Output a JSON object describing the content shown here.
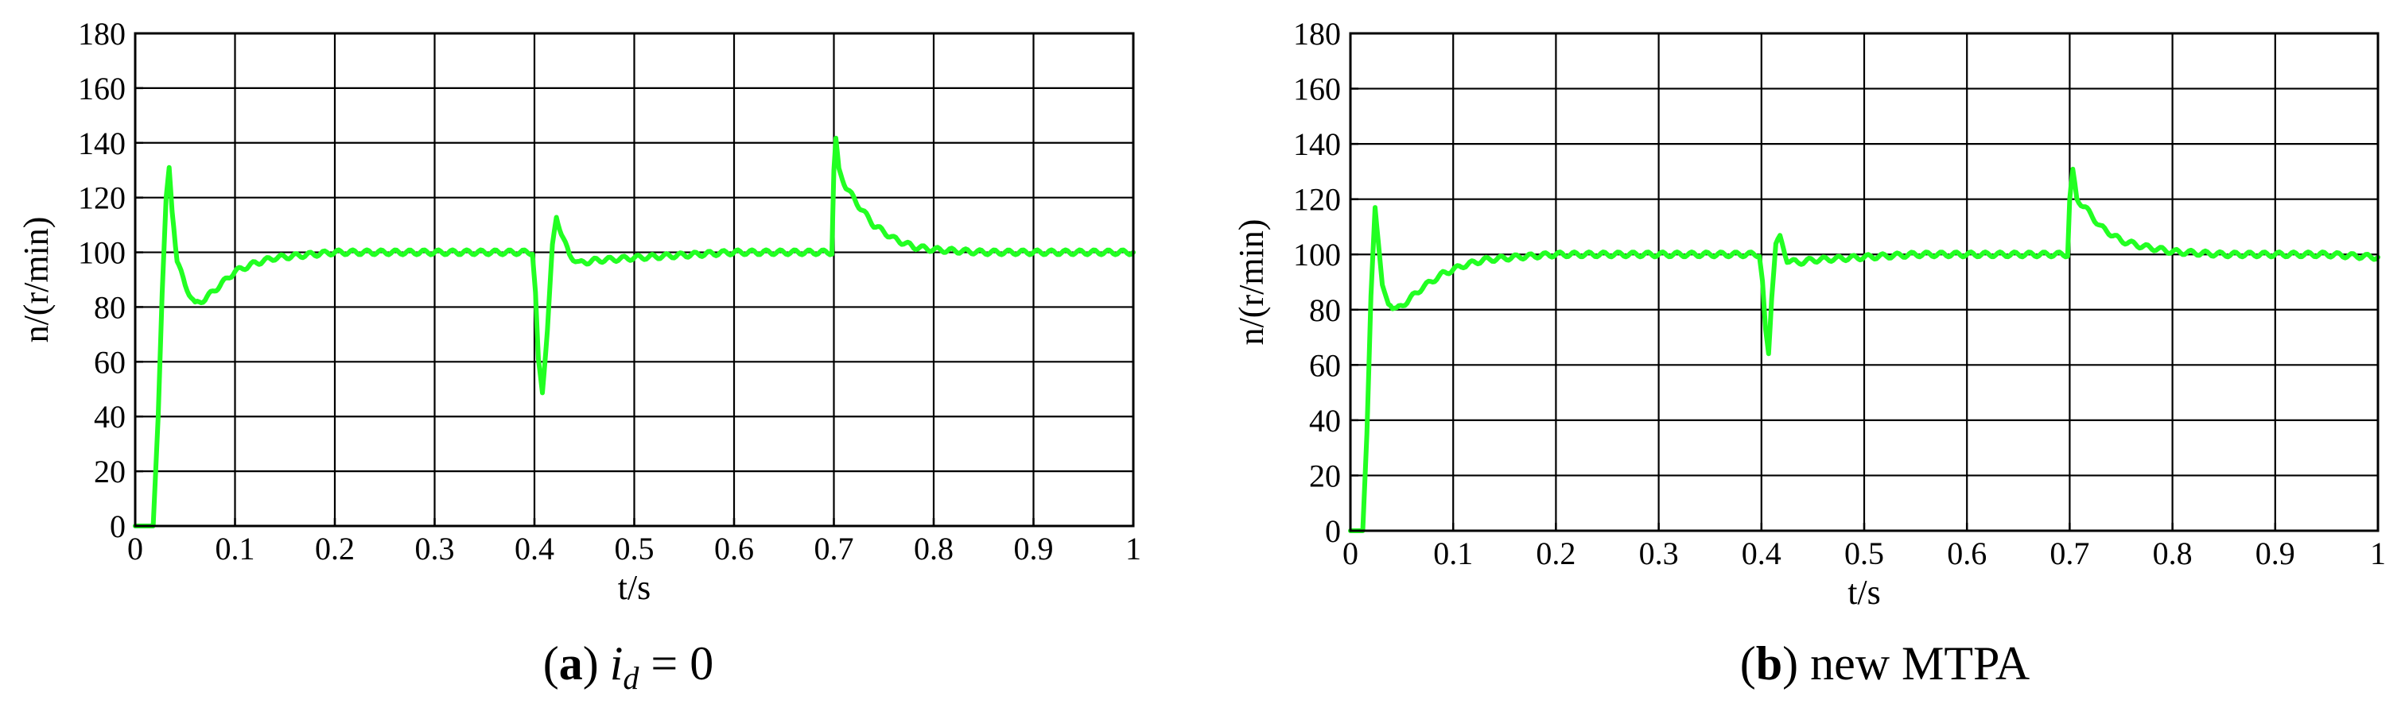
{
  "colors": {
    "line": "#22ff22",
    "grid": "#000000",
    "background": "#ffffff"
  },
  "captions": [
    {
      "letter": "a",
      "italic_main": "i",
      "italic_sub": "d",
      "rest": " = 0"
    },
    {
      "letter": "b",
      "italic_main": "",
      "italic_sub": "",
      "rest": " new MTPA"
    }
  ],
  "chart_data": [
    {
      "type": "line",
      "xlabel": "t/s",
      "ylabel": "n/(r/min)",
      "xlim": [
        0,
        1
      ],
      "ylim": [
        0,
        180
      ],
      "xticks": [
        0,
        0.1,
        0.2,
        0.3,
        0.4,
        0.5,
        0.6,
        0.7,
        0.8,
        0.9,
        1
      ],
      "xtick_labels": [
        "0",
        "0.1",
        "0.2",
        "0.3",
        "0.4",
        "0.5",
        "0.6",
        "0.7",
        "0.8",
        "0.9",
        "1"
      ],
      "yticks": [
        0,
        20,
        40,
        60,
        80,
        100,
        120,
        140,
        160,
        180
      ],
      "ytick_labels": [
        "0",
        "20",
        "40",
        "60",
        "80",
        "100",
        "120",
        "140",
        "160",
        "180"
      ],
      "grid": true,
      "series": [
        {
          "x": [
            0,
            0.018,
            0.023,
            0.027,
            0.031,
            0.034,
            0.037,
            0.042,
            0.05,
            0.06,
            0.07,
            0.085,
            0.1,
            0.12,
            0.14,
            0.17,
            0.2,
            0.25,
            0.3,
            0.35,
            0.398,
            0.401,
            0.404,
            0.408,
            0.413,
            0.418,
            0.422,
            0.427,
            0.435,
            0.445,
            0.46,
            0.5,
            0.55,
            0.6,
            0.65,
            0.698,
            0.7,
            0.702,
            0.705,
            0.712,
            0.725,
            0.74,
            0.76,
            0.78,
            0.8,
            0.85,
            0.9,
            0.95,
            1.0
          ],
          "y": [
            0,
            0,
            40,
            85,
            120,
            131,
            115,
            97,
            88,
            81,
            83,
            88,
            93,
            96,
            98,
            99,
            100,
            100,
            100,
            100,
            100,
            85,
            60,
            49,
            72,
            102,
            113,
            107,
            99,
            96,
            97,
            98,
            99,
            100,
            100,
            100,
            130,
            141,
            130,
            124,
            117,
            110,
            105,
            102,
            101,
            100,
            100,
            100,
            100
          ]
        }
      ]
    },
    {
      "type": "line",
      "xlabel": "t/s",
      "ylabel": "n/(r/min)",
      "xlim": [
        0,
        1
      ],
      "ylim": [
        0,
        180
      ],
      "xticks": [
        0,
        0.1,
        0.2,
        0.3,
        0.4,
        0.5,
        0.6,
        0.7,
        0.8,
        0.9,
        1
      ],
      "xtick_labels": [
        "0",
        "0.1",
        "0.2",
        "0.3",
        "0.4",
        "0.5",
        "0.6",
        "0.7",
        "0.8",
        "0.9",
        "1"
      ],
      "yticks": [
        0,
        20,
        40,
        60,
        80,
        100,
        120,
        140,
        160,
        180
      ],
      "ytick_labels": [
        "0",
        "20",
        "40",
        "60",
        "80",
        "100",
        "120",
        "140",
        "160",
        "180"
      ],
      "grid": true,
      "series": [
        {
          "x": [
            0,
            0.012,
            0.016,
            0.02,
            0.024,
            0.027,
            0.031,
            0.037,
            0.045,
            0.055,
            0.07,
            0.09,
            0.11,
            0.13,
            0.16,
            0.2,
            0.25,
            0.3,
            0.35,
            0.398,
            0.401,
            0.404,
            0.407,
            0.41,
            0.414,
            0.418,
            0.425,
            0.435,
            0.45,
            0.5,
            0.55,
            0.6,
            0.65,
            0.698,
            0.7,
            0.703,
            0.707,
            0.715,
            0.73,
            0.75,
            0.77,
            0.8,
            0.85,
            0.9,
            0.95,
            1.0
          ],
          "y": [
            0,
            0,
            35,
            85,
            117,
            105,
            89,
            82,
            80,
            83,
            88,
            93,
            96,
            98,
            99,
            100,
            100,
            100,
            100,
            100,
            90,
            72,
            64,
            85,
            104,
            106,
            98,
            97,
            98,
            99,
            100,
            100,
            100,
            100,
            120,
            130,
            120,
            117,
            110,
            105,
            103,
            101,
            100,
            100,
            100,
            99
          ]
        }
      ]
    }
  ]
}
